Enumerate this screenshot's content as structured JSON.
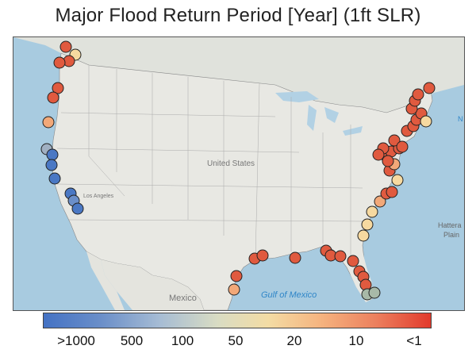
{
  "title": "Major Flood Return Period [Year] (1ft SLR)",
  "map": {
    "labels": {
      "country": "United States",
      "mexico": "Mexico",
      "gulf": "Gulf of Mexico",
      "hatteras": "Hattera",
      "hatteras2": "Plain",
      "losangeles": "Los Angeles",
      "partial_east_ocean": "N"
    },
    "colors": {
      "water": "#a8cbe0",
      "land": "#e6e6e2",
      "outline": "#222222"
    },
    "stations": [
      {
        "region": "washington",
        "value": "1-10"
      },
      {
        "region": "washington",
        "value": "20"
      },
      {
        "region": "washington",
        "value": "1-10"
      },
      {
        "region": "washington",
        "value": "1-10"
      },
      {
        "region": "oregon",
        "value": "1-10"
      },
      {
        "region": "oregon",
        "value": "1-10"
      },
      {
        "region": "oregon",
        "value": "10-20"
      },
      {
        "region": "n-california",
        "value": "100-500"
      },
      {
        "region": "n-california",
        "value": ">1000"
      },
      {
        "region": "c-california",
        "value": ">1000"
      },
      {
        "region": "c-california",
        "value": ">1000"
      },
      {
        "region": "s-california",
        "value": ">1000"
      },
      {
        "region": "s-california",
        "value": "500-1000"
      },
      {
        "region": "s-california",
        "value": ">1000"
      },
      {
        "region": "texas",
        "value": "10"
      },
      {
        "region": "texas",
        "value": "1-10"
      },
      {
        "region": "texas",
        "value": "1-10"
      },
      {
        "region": "louisiana",
        "value": "1-10"
      },
      {
        "region": "louisiana",
        "value": "1-10"
      },
      {
        "region": "mississippi",
        "value": "1-10"
      },
      {
        "region": "florida-gulf",
        "value": "1-10"
      },
      {
        "region": "florida-gulf",
        "value": "1-10"
      },
      {
        "region": "florida-gulf",
        "value": "1-10"
      },
      {
        "region": "florida-gulf",
        "value": "1-10"
      },
      {
        "region": "florida-gulf",
        "value": "1-10"
      },
      {
        "region": "florida-keys",
        "value": "100-500"
      },
      {
        "region": "florida-keys",
        "value": "100-500"
      },
      {
        "region": "florida-atlantic",
        "value": "20-50"
      },
      {
        "region": "florida-atlantic",
        "value": "20-50"
      },
      {
        "region": "georgia",
        "value": "20"
      },
      {
        "region": "carolinas",
        "value": "10-20"
      },
      {
        "region": "carolinas",
        "value": "1-10"
      },
      {
        "region": "chesapeake",
        "value": "20-50"
      },
      {
        "region": "mid-atlantic",
        "value": "1-10"
      },
      {
        "region": "new-england",
        "value": "20-50"
      },
      {
        "region": "maine",
        "value": "1-10"
      }
    ]
  },
  "colorbar": {
    "ticks": [
      ">1000",
      "500",
      "100",
      "50",
      "20",
      "10",
      "<1"
    ]
  }
}
